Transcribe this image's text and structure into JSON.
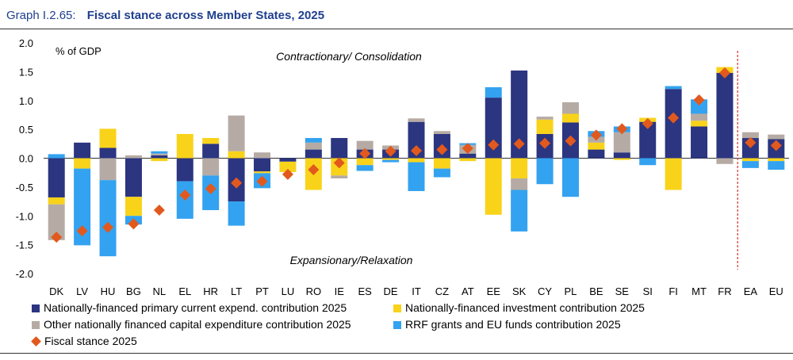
{
  "header": {
    "graph_id": "Graph I.2.65:",
    "title": "Fiscal stance across Member States, 2025"
  },
  "colors": {
    "primary": "#2b3580",
    "investment": "#f9d31a",
    "capex": "#b6aba4",
    "rrf": "#33a2f0",
    "stance": "#e2591d",
    "text": "#1f3f8f",
    "divider": "#d0312d"
  },
  "chart_data": {
    "type": "bar",
    "stacked": true,
    "title": "Fiscal stance across Member States, 2025",
    "ylabel": "% of GDP",
    "ylim": [
      -2.0,
      2.0
    ],
    "yticks": [
      "2.0",
      "1.5",
      "1.0",
      "0.5",
      "0.0",
      "-0.5",
      "-1.0",
      "-1.5",
      "-2.0"
    ],
    "annotations": {
      "top": "Contractionary/ Consolidation",
      "bottom": "Expansionary/Relaxation"
    },
    "categories": [
      "DK",
      "LV",
      "HU",
      "BG",
      "NL",
      "EL",
      "HR",
      "LT",
      "PT",
      "LU",
      "RO",
      "IE",
      "ES",
      "DE",
      "IT",
      "CZ",
      "AT",
      "EE",
      "SK",
      "CY",
      "PL",
      "BE",
      "SE",
      "SI",
      "FI",
      "MT",
      "FR",
      "EA",
      "EU"
    ],
    "divider_after": "FR",
    "series": [
      {
        "name": "Nationally-financed  primary current expend. contribution 2025",
        "color_key": "primary",
        "values": [
          -0.68,
          0.27,
          0.18,
          -0.67,
          0.05,
          -0.4,
          0.25,
          -0.75,
          -0.23,
          -0.06,
          0.15,
          0.35,
          0.15,
          0.15,
          0.63,
          0.42,
          0.08,
          1.05,
          1.52,
          0.42,
          0.62,
          0.15,
          0.1,
          0.63,
          1.2,
          0.55,
          1.48,
          0.35,
          0.33
        ]
      },
      {
        "name": "Nationally-financed investment contribution 2025",
        "color_key": "investment",
        "values": [
          -0.12,
          -0.18,
          0.33,
          -0.33,
          -0.05,
          0.42,
          0.1,
          0.12,
          -0.03,
          -0.18,
          -0.55,
          -0.3,
          -0.12,
          -0.03,
          -0.07,
          -0.18,
          -0.05,
          -0.98,
          -0.35,
          0.25,
          0.15,
          0.12,
          -0.03,
          0.07,
          -0.55,
          0.1,
          0.1,
          -0.05,
          -0.05
        ]
      },
      {
        "name": "Other nationally financed capital expenditure contribution 2025",
        "color_key": "capex",
        "values": [
          -0.62,
          0.0,
          -0.38,
          0.05,
          0.03,
          0.0,
          -0.3,
          0.62,
          0.1,
          0.0,
          0.12,
          -0.05,
          0.15,
          0.07,
          0.06,
          0.05,
          0.15,
          0.0,
          -0.2,
          0.05,
          0.2,
          0.1,
          0.35,
          0.0,
          0.0,
          0.12,
          -0.1,
          0.1,
          0.08
        ]
      },
      {
        "name": "RRF grants and EU funds contribution 2025",
        "color_key": "rrf",
        "values": [
          0.07,
          -1.33,
          -1.32,
          -0.15,
          0.04,
          -0.65,
          -0.6,
          -0.42,
          -0.26,
          0.0,
          0.08,
          0.0,
          -0.1,
          -0.04,
          -0.5,
          -0.15,
          0.03,
          0.18,
          -0.72,
          -0.45,
          -0.67,
          0.1,
          0.1,
          -0.12,
          0.05,
          0.25,
          0.0,
          -0.12,
          -0.15
        ]
      }
    ],
    "fiscal_stance": {
      "name": "Fiscal stance 2025",
      "color_key": "stance",
      "values": [
        -1.37,
        -1.26,
        -1.2,
        -1.14,
        -0.9,
        -0.64,
        -0.53,
        -0.43,
        -0.4,
        -0.28,
        -0.2,
        -0.08,
        0.08,
        0.12,
        0.13,
        0.15,
        0.17,
        0.23,
        0.25,
        0.26,
        0.3,
        0.4,
        0.51,
        0.6,
        0.7,
        1.01,
        1.48,
        0.27,
        0.22
      ]
    },
    "legend": [
      {
        "label": "Nationally-financed  primary current expend. contribution 2025",
        "color_key": "primary",
        "marker": "square"
      },
      {
        "label": "Nationally-financed investment contribution 2025",
        "color_key": "investment",
        "marker": "square"
      },
      {
        "label": "Other nationally financed capital expenditure contribution 2025",
        "color_key": "capex",
        "marker": "square"
      },
      {
        "label": "RRF grants and EU funds contribution 2025",
        "color_key": "rrf",
        "marker": "square"
      },
      {
        "label": "Fiscal stance 2025",
        "color_key": "stance",
        "marker": "diamond"
      }
    ],
    "legend_position": "bottom"
  }
}
